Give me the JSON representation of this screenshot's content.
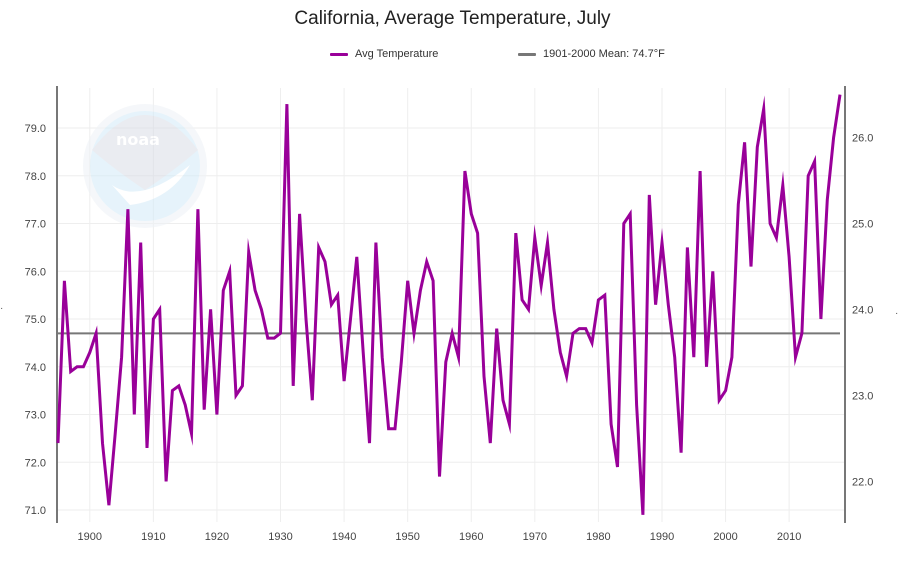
{
  "chart_data": {
    "type": "line",
    "title": "California, Average Temperature, July",
    "xlabel": "",
    "ylabel": "",
    "legend_position": "top-center",
    "grid": true,
    "xlim": [
      1895,
      2018
    ],
    "ylim": [
      70.8,
      79.9
    ],
    "ylim_right_celsius": [
      21.56,
      26.61
    ],
    "x_ticks": [
      "1900",
      "1910",
      "1920",
      "1930",
      "1940",
      "1950",
      "1960",
      "1970",
      "1980",
      "1990",
      "2000",
      "2010"
    ],
    "y_ticks_left": [
      "71.0",
      "72.0",
      "73.0",
      "74.0",
      "75.0",
      "76.0",
      "77.0",
      "78.0",
      "79.0"
    ],
    "y_ticks_right": [
      "22.0",
      "23.0",
      "24.0",
      "25.0",
      "26.0"
    ],
    "series": [
      {
        "name": "Avg Temperature",
        "color": "#990099",
        "x": [
          1895,
          1896,
          1897,
          1898,
          1899,
          1900,
          1901,
          1902,
          1903,
          1904,
          1905,
          1906,
          1907,
          1908,
          1909,
          1910,
          1911,
          1912,
          1913,
          1914,
          1915,
          1916,
          1917,
          1918,
          1919,
          1920,
          1921,
          1922,
          1923,
          1924,
          1925,
          1926,
          1927,
          1928,
          1929,
          1930,
          1931,
          1932,
          1933,
          1934,
          1935,
          1936,
          1937,
          1938,
          1939,
          1940,
          1941,
          1942,
          1943,
          1944,
          1945,
          1946,
          1947,
          1948,
          1949,
          1950,
          1951,
          1952,
          1953,
          1954,
          1955,
          1956,
          1957,
          1958,
          1959,
          1960,
          1961,
          1962,
          1963,
          1964,
          1965,
          1966,
          1967,
          1968,
          1969,
          1970,
          1971,
          1972,
          1973,
          1974,
          1975,
          1976,
          1977,
          1978,
          1979,
          1980,
          1981,
          1982,
          1983,
          1984,
          1985,
          1986,
          1987,
          1988,
          1989,
          1990,
          1991,
          1992,
          1993,
          1994,
          1995,
          1996,
          1997,
          1998,
          1999,
          2000,
          2001,
          2002,
          2003,
          2004,
          2005,
          2006,
          2007,
          2008,
          2009,
          2010,
          2011,
          2012,
          2013,
          2014,
          2015,
          2016,
          2017,
          2018
        ],
        "values": [
          72.4,
          75.8,
          73.9,
          74.0,
          74.0,
          74.3,
          74.7,
          72.4,
          71.1,
          72.6,
          74.2,
          77.3,
          73.0,
          76.6,
          72.3,
          75.0,
          75.2,
          71.6,
          73.5,
          73.6,
          73.2,
          72.6,
          77.3,
          73.1,
          75.2,
          73.0,
          75.6,
          76.0,
          73.4,
          73.6,
          76.4,
          75.6,
          75.2,
          74.6,
          74.6,
          74.7,
          79.5,
          73.6,
          77.2,
          75.0,
          73.3,
          76.5,
          76.2,
          75.3,
          75.5,
          73.7,
          75.0,
          76.3,
          74.3,
          72.4,
          76.6,
          74.2,
          72.7,
          72.7,
          74.1,
          75.8,
          74.7,
          75.6,
          76.2,
          75.8,
          71.7,
          74.1,
          74.7,
          74.2,
          78.1,
          77.2,
          76.8,
          73.8,
          72.4,
          74.8,
          73.3,
          72.8,
          76.8,
          75.4,
          75.2,
          76.7,
          75.7,
          76.6,
          75.2,
          74.3,
          73.8,
          74.7,
          74.8,
          74.8,
          74.5,
          75.4,
          75.5,
          72.8,
          71.9,
          77.0,
          77.2,
          73.2,
          70.9,
          77.6,
          75.3,
          76.6,
          75.3,
          74.2,
          72.2,
          76.5,
          74.2,
          78.1,
          74.0,
          76.0,
          73.3,
          73.5,
          74.2,
          77.4,
          78.7,
          76.1,
          78.6,
          79.4,
          77.0,
          76.7,
          77.8,
          76.3,
          74.2,
          74.7,
          78.0,
          78.3,
          75.0,
          77.5,
          78.8,
          79.7
        ]
      },
      {
        "name": "1901-2000 Mean: 74.7°F",
        "color": "#777777",
        "constant": 74.7
      }
    ]
  },
  "legend": {
    "avg_label": "Avg Temperature",
    "mean_label": "1901-2000 Mean: 74.7°F"
  },
  "watermark": {
    "text": "noaa",
    "icon": "noaa-logo-icon"
  }
}
